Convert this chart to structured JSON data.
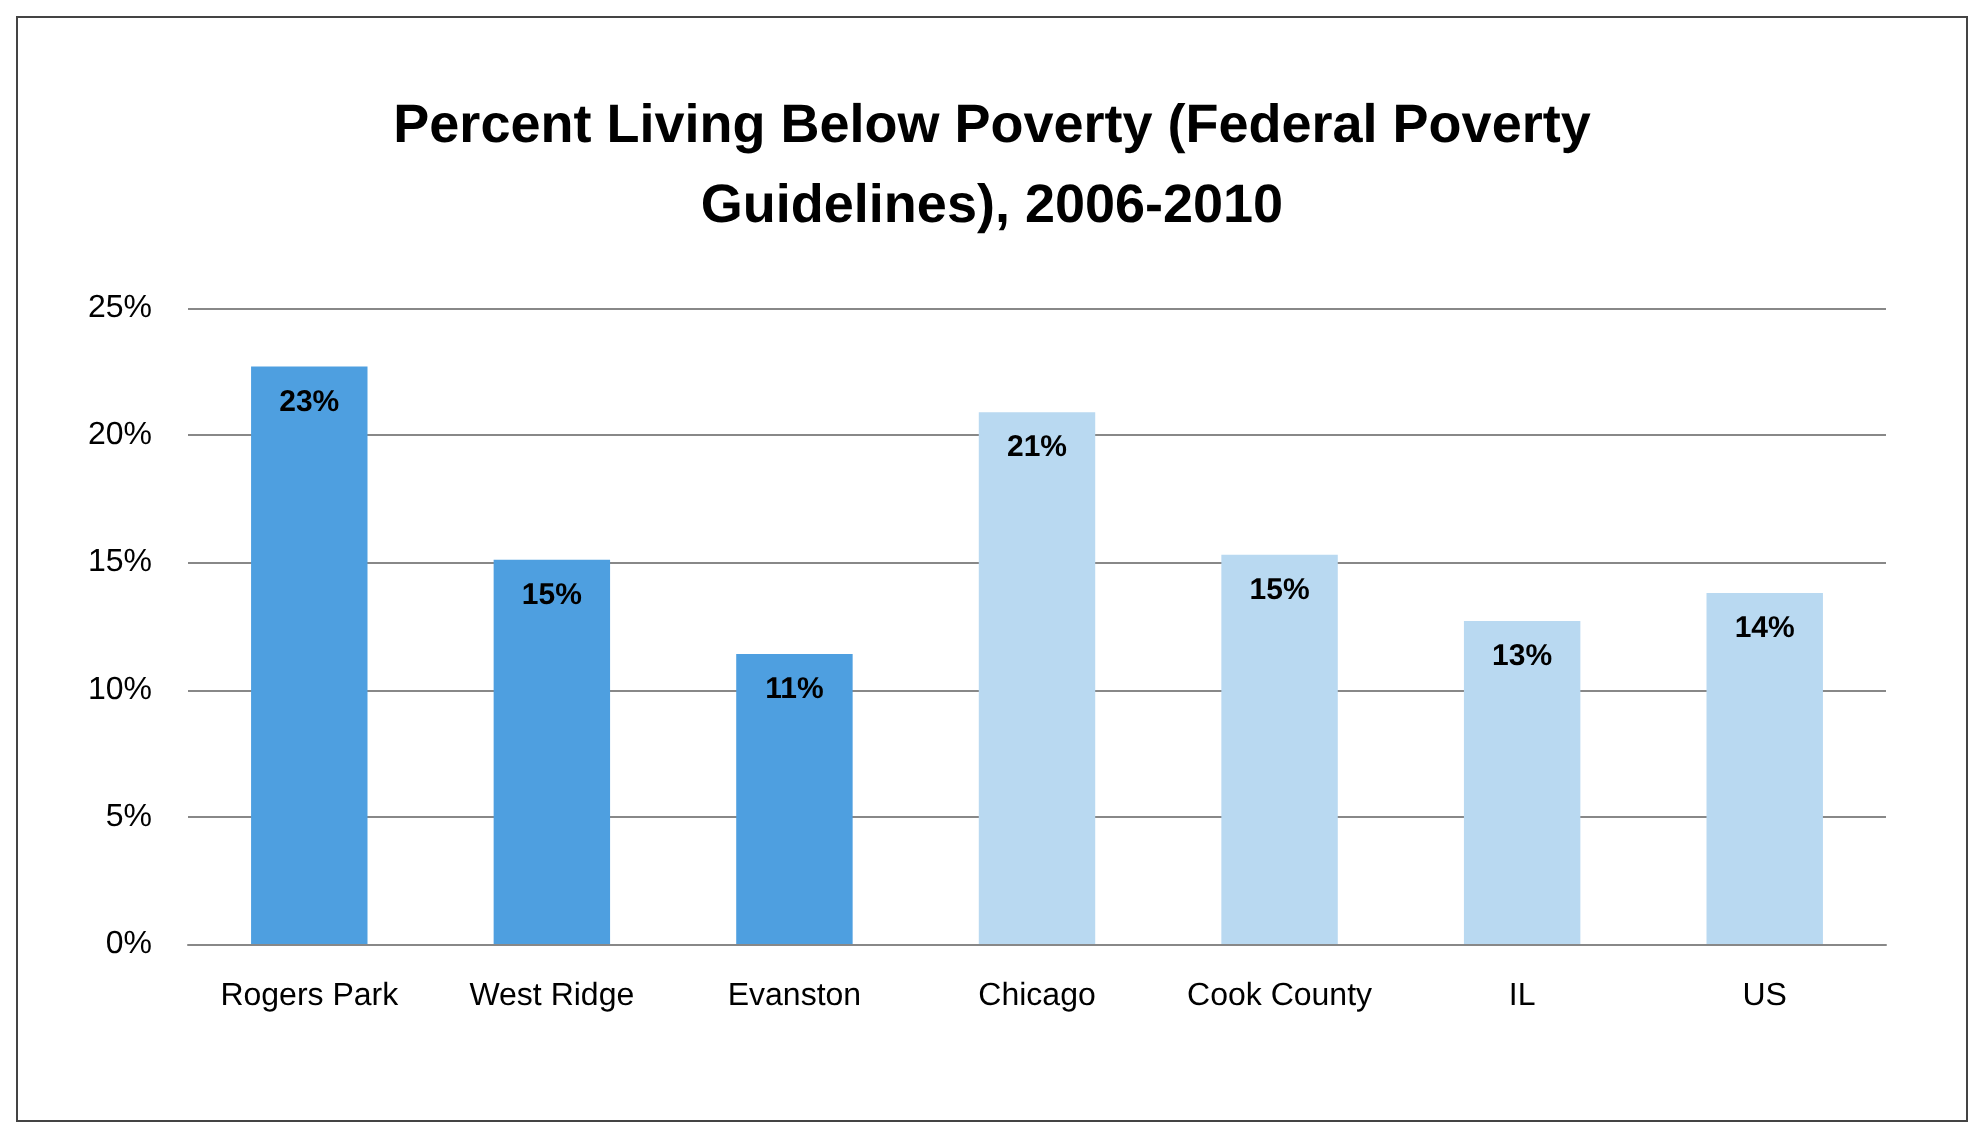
{
  "chart_data": {
    "type": "bar",
    "title": "Percent Living Below Poverty (Federal Poverty\nGuidelines), 2006-2010",
    "categories": [
      "Rogers Park",
      "West Ridge",
      "Evanston",
      "Chicago",
      "Cook County",
      "IL",
      "US"
    ],
    "values": [
      22.7,
      15.1,
      11.4,
      20.9,
      15.3,
      12.7,
      13.8
    ],
    "value_labels": [
      "23%",
      "15%",
      "11%",
      "21%",
      "15%",
      "13%",
      "14%"
    ],
    "colors": [
      "#4e9fe0",
      "#4e9fe0",
      "#4e9fe0",
      "#b9d9f1",
      "#b9d9f1",
      "#b9d9f1",
      "#b9d9f1"
    ],
    "ylim": [
      0,
      25
    ],
    "yticks": [
      {
        "value": 0,
        "label": "0%"
      },
      {
        "value": 5,
        "label": "5%"
      },
      {
        "value": 10,
        "label": "10%"
      },
      {
        "value": 15,
        "label": "15%"
      },
      {
        "value": 20,
        "label": "20%"
      },
      {
        "value": 25,
        "label": "25%"
      }
    ],
    "grid": "y"
  }
}
